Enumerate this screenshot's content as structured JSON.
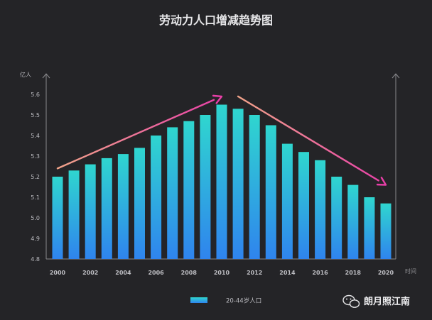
{
  "chart_data": {
    "type": "bar",
    "title": "劳动力人口增减趋势图",
    "ylabel": "亿人",
    "xlabel": "时间",
    "categories": [
      "2000",
      "2001",
      "2002",
      "2003",
      "2004",
      "2005",
      "2006",
      "2007",
      "2008",
      "2009",
      "2010",
      "2011",
      "2012",
      "2013",
      "2014",
      "2015",
      "2016",
      "2017",
      "2018",
      "2019",
      "2020"
    ],
    "x_tick_labels": [
      "2000",
      "2002",
      "2004",
      "2006",
      "2008",
      "2010",
      "2012",
      "2014",
      "2016",
      "2018",
      "2020"
    ],
    "y_ticks": [
      4.8,
      4.9,
      5.0,
      5.1,
      5.2,
      5.3,
      5.4,
      5.5,
      5.6
    ],
    "ylim": [
      4.8,
      5.6
    ],
    "series": [
      {
        "name": "20-44岁人口",
        "values": [
          5.2,
          5.23,
          5.26,
          5.29,
          5.31,
          5.34,
          5.4,
          5.44,
          5.47,
          5.5,
          5.55,
          5.53,
          5.5,
          5.45,
          5.36,
          5.32,
          5.28,
          5.2,
          5.16,
          5.1,
          5.07
        ],
        "gradient": [
          "#2fd6cf",
          "#2f84ee"
        ]
      }
    ],
    "legend_position": "bottom-center",
    "grid": false,
    "annotations": [
      {
        "type": "arrow",
        "from": [
          "2000",
          5.24
        ],
        "to": [
          "2010",
          5.59
        ],
        "gradient": [
          "#f2a48a",
          "#e83fa8"
        ]
      },
      {
        "type": "arrow",
        "from": [
          "2011",
          5.59
        ],
        "to": [
          "2020",
          5.16
        ],
        "gradient": [
          "#f2a48a",
          "#e83fa8"
        ]
      }
    ]
  },
  "watermark": {
    "text": "朗月照江南",
    "icon": "wechat-icon"
  },
  "colors": {
    "background": "#242427",
    "axis": "#8a8a8e",
    "tick_text": "#bdbdc2",
    "title": "#e6e6e8"
  }
}
